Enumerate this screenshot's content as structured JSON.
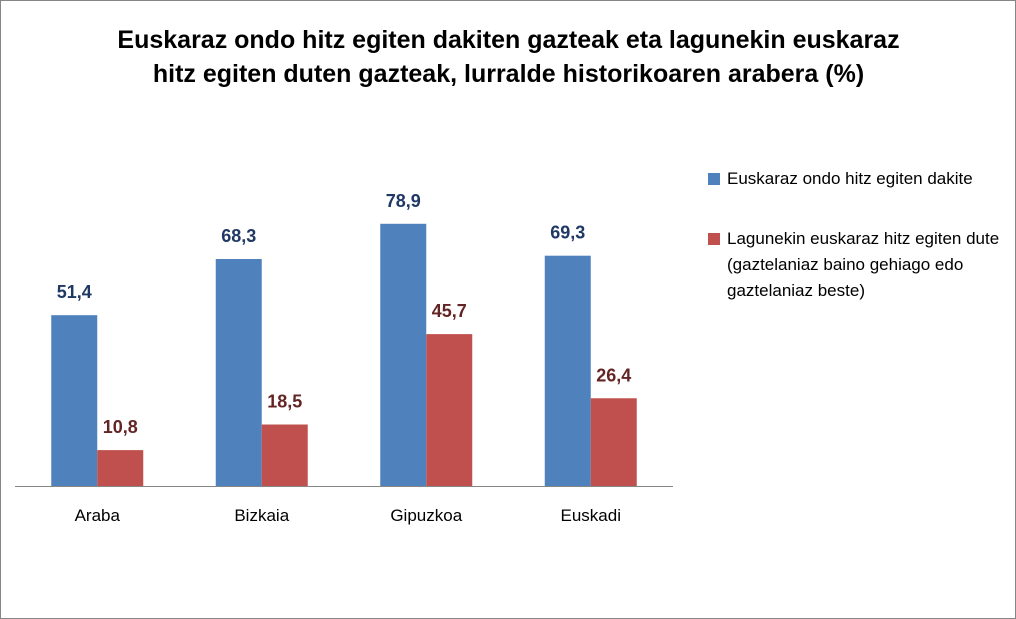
{
  "chart_data": {
    "type": "bar",
    "title": [
      "Euskaraz ondo hitz egiten dakiten gazteak eta lagunekin euskaraz",
      "hitz egiten duten gazteak, lurralde historikoaren arabera (%)"
    ],
    "categories": [
      "Araba",
      "Bizkaia",
      "Gipuzkoa",
      "Euskadi"
    ],
    "series": [
      {
        "name": "Euskaraz ondo hitz egiten dakite",
        "values": [
          51.4,
          68.3,
          78.9,
          69.3
        ],
        "labels": [
          "51,4",
          "68,3",
          "78,9",
          "69,3"
        ],
        "color": "#4F81BD",
        "label_color": "#1F3864"
      },
      {
        "name": "Lagunekin euskaraz hitz egiten dute (gaztelaniaz baino gehiago edo gaztelaniaz beste)",
        "values": [
          10.8,
          18.5,
          45.7,
          26.4
        ],
        "labels": [
          "10,8",
          "18,5",
          "45,7",
          "26,4"
        ],
        "color": "#C0504D",
        "label_color": "#632523"
      }
    ],
    "ylim": [
      0,
      100
    ],
    "grid": false,
    "legend": "right",
    "axis_color": "#868686"
  }
}
